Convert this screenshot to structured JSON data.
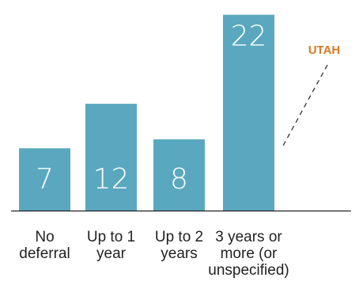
{
  "chart_data": {
    "type": "bar",
    "categories": [
      [
        "No",
        "deferral"
      ],
      [
        "Up to 1",
        "year"
      ],
      [
        "Up to 2",
        "years"
      ],
      [
        "3 years or",
        "more (or",
        "unspecified)"
      ]
    ],
    "values": [
      7,
      12,
      8,
      22
    ],
    "ylim": [
      0,
      23.3
    ],
    "grid": false,
    "bar_color": "#5aa8c0",
    "annotation": {
      "text": "UTAH",
      "color": "#d97a26",
      "target_category": 3
    }
  }
}
